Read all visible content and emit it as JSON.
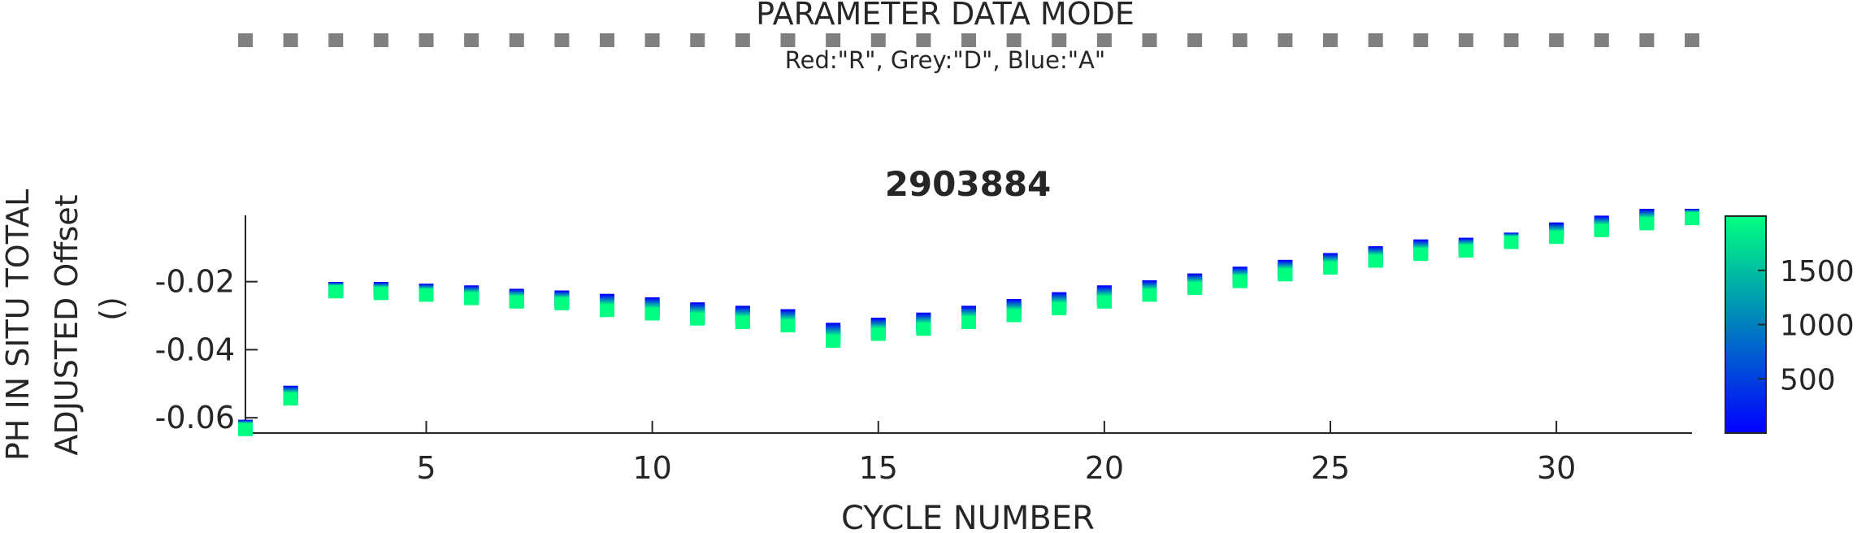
{
  "header": {
    "title": "PARAMETER DATA MODE",
    "subtitle": "Red:\"R\", Grey:\"D\", Blue:\"A\"",
    "mode_color": "#808080",
    "mode_cycles": [
      1,
      2,
      3,
      4,
      5,
      6,
      7,
      8,
      9,
      10,
      11,
      12,
      13,
      14,
      15,
      16,
      17,
      18,
      19,
      20,
      21,
      22,
      23,
      24,
      25,
      26,
      27,
      28,
      29,
      30,
      31,
      32,
      33
    ]
  },
  "chart_data": {
    "type": "scatter",
    "title": "2903884",
    "xlabel": "CYCLE NUMBER",
    "ylabel": [
      "PH IN SITU TOTAL",
      "ADJUSTED Offset",
      "()"
    ],
    "xlim": [
      1,
      33
    ],
    "ylim": [
      -0.0645,
      -0.0005
    ],
    "xticks": [
      5,
      10,
      15,
      20,
      25,
      30
    ],
    "yticks": [
      -0.06,
      -0.04,
      -0.02
    ],
    "ytick_labels": [
      "-0.06",
      "-0.04",
      "-0.02"
    ],
    "colorbar": {
      "range": [
        0,
        2000
      ],
      "ticks": [
        500,
        1000,
        1500
      ],
      "colors": [
        "#0000ff",
        "#00ff80"
      ]
    },
    "series": [
      {
        "x": 1,
        "y_top": -0.0625,
        "y_bottom": -0.0635
      },
      {
        "x": 2,
        "y_top": -0.0525,
        "y_bottom": -0.0545
      },
      {
        "x": 3,
        "y_top": -0.022,
        "y_bottom": -0.023
      },
      {
        "x": 4,
        "y_top": -0.022,
        "y_bottom": -0.0235
      },
      {
        "x": 5,
        "y_top": -0.0225,
        "y_bottom": -0.024
      },
      {
        "x": 6,
        "y_top": -0.023,
        "y_bottom": -0.025
      },
      {
        "x": 7,
        "y_top": -0.024,
        "y_bottom": -0.026
      },
      {
        "x": 8,
        "y_top": -0.0245,
        "y_bottom": -0.0265
      },
      {
        "x": 9,
        "y_top": -0.0255,
        "y_bottom": -0.0285
      },
      {
        "x": 10,
        "y_top": -0.0265,
        "y_bottom": -0.0295
      },
      {
        "x": 11,
        "y_top": -0.028,
        "y_bottom": -0.031
      },
      {
        "x": 12,
        "y_top": -0.029,
        "y_bottom": -0.032
      },
      {
        "x": 13,
        "y_top": -0.03,
        "y_bottom": -0.033
      },
      {
        "x": 14,
        "y_top": -0.034,
        "y_bottom": -0.0375
      },
      {
        "x": 15,
        "y_top": -0.0325,
        "y_bottom": -0.0355
      },
      {
        "x": 16,
        "y_top": -0.031,
        "y_bottom": -0.034
      },
      {
        "x": 17,
        "y_top": -0.029,
        "y_bottom": -0.032
      },
      {
        "x": 18,
        "y_top": -0.027,
        "y_bottom": -0.03
      },
      {
        "x": 19,
        "y_top": -0.025,
        "y_bottom": -0.028
      },
      {
        "x": 20,
        "y_top": -0.023,
        "y_bottom": -0.026
      },
      {
        "x": 21,
        "y_top": -0.0215,
        "y_bottom": -0.024
      },
      {
        "x": 22,
        "y_top": -0.0195,
        "y_bottom": -0.022
      },
      {
        "x": 23,
        "y_top": -0.0175,
        "y_bottom": -0.02
      },
      {
        "x": 24,
        "y_top": -0.0155,
        "y_bottom": -0.018
      },
      {
        "x": 25,
        "y_top": -0.0135,
        "y_bottom": -0.016
      },
      {
        "x": 26,
        "y_top": -0.0115,
        "y_bottom": -0.014
      },
      {
        "x": 27,
        "y_top": -0.0095,
        "y_bottom": -0.012
      },
      {
        "x": 28,
        "y_top": -0.009,
        "y_bottom": -0.011
      },
      {
        "x": 29,
        "y_top": -0.0075,
        "y_bottom": -0.0085
      },
      {
        "x": 30,
        "y_top": -0.0045,
        "y_bottom": -0.007
      },
      {
        "x": 31,
        "y_top": -0.0025,
        "y_bottom": -0.005
      },
      {
        "x": 32,
        "y_top": -0.0005,
        "y_bottom": -0.003
      },
      {
        "x": 33,
        "y_top": -0.0005,
        "y_bottom": -0.0015
      }
    ]
  }
}
